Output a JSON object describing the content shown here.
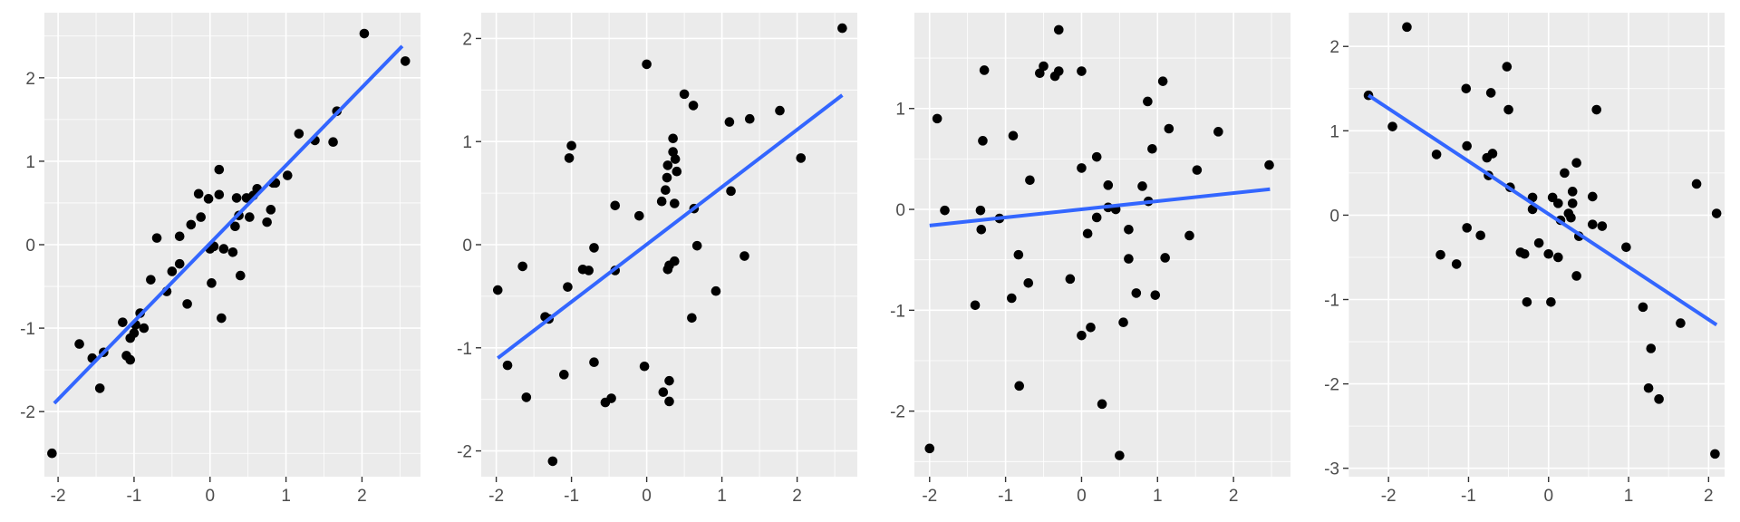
{
  "colors": {
    "panel": "#ebebeb",
    "grid": "#ffffff",
    "point": "#000000",
    "fit_line": "#3366ff",
    "tick_text": "#4d4d4d"
  },
  "chart_data": [
    {
      "type": "scatter",
      "title": "",
      "xlabel": "",
      "ylabel": "",
      "grid": true,
      "xlim": [
        -2.18,
        2.77
      ],
      "ylim": [
        -2.78,
        2.78
      ],
      "x_ticks": [
        -2,
        -1,
        0,
        1,
        2
      ],
      "y_ticks": [
        -2,
        -1,
        0,
        1,
        2
      ],
      "x_tick_labels": [
        "-2",
        "-1",
        "0",
        "1",
        "2"
      ],
      "y_tick_labels": [
        "-2",
        "-1",
        "0",
        "1",
        "2"
      ],
      "fit_line": {
        "x": [
          -2.05,
          2.53
        ],
        "y": [
          -1.9,
          2.38
        ]
      },
      "points": [
        [
          -2.08,
          -2.5
        ],
        [
          -1.72,
          -1.19
        ],
        [
          -1.55,
          -1.36
        ],
        [
          -1.45,
          -1.72
        ],
        [
          -1.4,
          -1.29
        ],
        [
          -1.15,
          -0.93
        ],
        [
          -1.1,
          -1.33
        ],
        [
          -1.05,
          -1.38
        ],
        [
          -1.05,
          -1.12
        ],
        [
          -1.0,
          -1.06
        ],
        [
          -0.98,
          -0.96
        ],
        [
          -0.92,
          -0.82
        ],
        [
          -0.87,
          -1.0
        ],
        [
          -0.78,
          -0.42
        ],
        [
          -0.7,
          0.08
        ],
        [
          -0.57,
          -0.56
        ],
        [
          -0.5,
          -0.32
        ],
        [
          -0.4,
          -0.23
        ],
        [
          -0.4,
          0.1
        ],
        [
          -0.3,
          -0.71
        ],
        [
          -0.25,
          0.24
        ],
        [
          -0.15,
          0.61
        ],
        [
          -0.12,
          0.33
        ],
        [
          -0.02,
          0.55
        ],
        [
          0.0,
          -0.05
        ],
        [
          0.02,
          -0.46
        ],
        [
          0.05,
          -0.02
        ],
        [
          0.12,
          0.9
        ],
        [
          0.12,
          0.6
        ],
        [
          0.15,
          -0.88
        ],
        [
          0.18,
          -0.05
        ],
        [
          0.3,
          -0.09
        ],
        [
          0.33,
          0.22
        ],
        [
          0.35,
          0.56
        ],
        [
          0.38,
          0.35
        ],
        [
          0.4,
          -0.37
        ],
        [
          0.48,
          0.56
        ],
        [
          0.52,
          0.33
        ],
        [
          0.57,
          0.59
        ],
        [
          0.62,
          0.67
        ],
        [
          0.75,
          0.27
        ],
        [
          0.8,
          0.42
        ],
        [
          0.83,
          0.74
        ],
        [
          0.86,
          0.74
        ],
        [
          1.02,
          0.83
        ],
        [
          1.17,
          1.33
        ],
        [
          1.38,
          1.25
        ],
        [
          1.62,
          1.23
        ],
        [
          1.67,
          1.6
        ],
        [
          2.03,
          2.53
        ],
        [
          2.57,
          2.2
        ]
      ]
    },
    {
      "type": "scatter",
      "title": "",
      "xlabel": "",
      "ylabel": "",
      "grid": true,
      "xlim": [
        -2.2,
        2.8
      ],
      "ylim": [
        -2.25,
        2.25
      ],
      "x_ticks": [
        -2,
        -1,
        0,
        1,
        2
      ],
      "y_ticks": [
        -2,
        -1,
        0,
        1,
        2
      ],
      "x_tick_labels": [
        "-2",
        "-1",
        "0",
        "1",
        "2"
      ],
      "y_tick_labels": [
        "-2",
        "-1",
        "0",
        "1",
        "2"
      ],
      "fit_line": {
        "x": [
          -1.98,
          2.6
        ],
        "y": [
          -1.1,
          1.45
        ]
      },
      "points": [
        [
          -1.98,
          -0.44
        ],
        [
          -1.85,
          -1.17
        ],
        [
          -1.65,
          -0.21
        ],
        [
          -1.6,
          -1.48
        ],
        [
          -1.35,
          -0.7
        ],
        [
          -1.3,
          -0.72
        ],
        [
          -1.25,
          -2.1
        ],
        [
          -1.1,
          -1.26
        ],
        [
          -1.05,
          -0.41
        ],
        [
          -1.03,
          0.84
        ],
        [
          -1.0,
          0.96
        ],
        [
          -0.85,
          -0.24
        ],
        [
          -0.77,
          -0.25
        ],
        [
          -0.7,
          -0.03
        ],
        [
          -0.7,
          -1.14
        ],
        [
          -0.55,
          -1.53
        ],
        [
          -0.47,
          -1.49
        ],
        [
          -0.42,
          0.38
        ],
        [
          -0.42,
          -0.25
        ],
        [
          -0.1,
          0.28
        ],
        [
          -0.03,
          -1.18
        ],
        [
          0.0,
          1.75
        ],
        [
          0.2,
          0.42
        ],
        [
          0.22,
          -1.43
        ],
        [
          0.25,
          0.53
        ],
        [
          0.27,
          0.65
        ],
        [
          0.28,
          -0.24
        ],
        [
          0.28,
          0.77
        ],
        [
          0.3,
          -0.2
        ],
        [
          0.3,
          -1.32
        ],
        [
          0.3,
          -1.52
        ],
        [
          0.35,
          1.03
        ],
        [
          0.35,
          0.9
        ],
        [
          0.37,
          -0.16
        ],
        [
          0.37,
          0.4
        ],
        [
          0.38,
          0.83
        ],
        [
          0.4,
          0.71
        ],
        [
          0.5,
          1.46
        ],
        [
          0.6,
          -0.71
        ],
        [
          0.62,
          1.35
        ],
        [
          0.63,
          0.35
        ],
        [
          0.67,
          -0.01
        ],
        [
          0.92,
          -0.45
        ],
        [
          1.1,
          1.19
        ],
        [
          1.12,
          0.52
        ],
        [
          1.3,
          -0.11
        ],
        [
          1.37,
          1.22
        ],
        [
          1.77,
          1.3
        ],
        [
          2.05,
          0.84
        ],
        [
          2.6,
          2.1
        ]
      ]
    },
    {
      "type": "scatter",
      "title": "",
      "xlabel": "",
      "ylabel": "",
      "grid": true,
      "xlim": [
        -2.2,
        2.75
      ],
      "ylim": [
        -2.65,
        1.95
      ],
      "x_ticks": [
        -2,
        -1,
        0,
        1,
        2
      ],
      "y_ticks": [
        -2,
        -1,
        0,
        1
      ],
      "x_tick_labels": [
        "-2",
        "-1",
        "0",
        "1",
        "2"
      ],
      "y_tick_labels": [
        "-2",
        "-1",
        "0",
        "1"
      ],
      "fit_line": {
        "x": [
          -2.0,
          2.48
        ],
        "y": [
          -0.16,
          0.2
        ]
      },
      "points": [
        [
          -2.0,
          -2.37
        ],
        [
          -1.9,
          0.9
        ],
        [
          -1.8,
          -0.01
        ],
        [
          -1.4,
          -0.95
        ],
        [
          -1.33,
          -0.01
        ],
        [
          -1.32,
          -0.2
        ],
        [
          -1.3,
          0.68
        ],
        [
          -1.28,
          1.38
        ],
        [
          -1.08,
          -0.09
        ],
        [
          -0.92,
          -0.88
        ],
        [
          -0.9,
          0.73
        ],
        [
          -0.83,
          -0.45
        ],
        [
          -0.82,
          -1.75
        ],
        [
          -0.7,
          -0.73
        ],
        [
          -0.68,
          0.29
        ],
        [
          -0.55,
          1.35
        ],
        [
          -0.5,
          1.42
        ],
        [
          -0.35,
          1.32
        ],
        [
          -0.3,
          1.78
        ],
        [
          -0.3,
          1.37
        ],
        [
          -0.15,
          -0.69
        ],
        [
          0.0,
          1.37
        ],
        [
          0.0,
          0.41
        ],
        [
          0.0,
          -1.25
        ],
        [
          0.08,
          -0.24
        ],
        [
          0.12,
          -1.17
        ],
        [
          0.2,
          0.52
        ],
        [
          0.2,
          -0.08
        ],
        [
          0.27,
          -1.93
        ],
        [
          0.35,
          0.24
        ],
        [
          0.35,
          0.02
        ],
        [
          0.45,
          0.0
        ],
        [
          0.5,
          -2.44
        ],
        [
          0.55,
          -1.12
        ],
        [
          0.62,
          -0.2
        ],
        [
          0.62,
          -0.49
        ],
        [
          0.72,
          -0.83
        ],
        [
          0.8,
          0.23
        ],
        [
          0.87,
          1.07
        ],
        [
          0.88,
          0.08
        ],
        [
          0.93,
          0.6
        ],
        [
          0.97,
          -0.85
        ],
        [
          1.07,
          1.27
        ],
        [
          1.1,
          -0.48
        ],
        [
          1.15,
          0.8
        ],
        [
          1.42,
          -0.26
        ],
        [
          1.52,
          0.39
        ],
        [
          1.8,
          0.77
        ],
        [
          2.47,
          0.44
        ]
      ]
    },
    {
      "type": "scatter",
      "title": "",
      "xlabel": "",
      "ylabel": "",
      "grid": true,
      "xlim": [
        -2.5,
        2.2
      ],
      "ylim": [
        -3.1,
        2.4
      ],
      "x_ticks": [
        -2,
        -1,
        0,
        1,
        2
      ],
      "y_ticks": [
        -3,
        -2,
        -1,
        0,
        1,
        2
      ],
      "x_tick_labels": [
        "-2",
        "-1",
        "0",
        "1",
        "2"
      ],
      "y_tick_labels": [
        "-3",
        "-2",
        "-1",
        "0",
        "1",
        "2"
      ],
      "fit_line": {
        "x": [
          -2.25,
          2.1
        ],
        "y": [
          1.42,
          -1.3
        ]
      },
      "points": [
        [
          -2.25,
          1.42
        ],
        [
          -1.95,
          1.05
        ],
        [
          -1.77,
          2.23
        ],
        [
          -1.4,
          0.72
        ],
        [
          -1.35,
          -0.47
        ],
        [
          -1.15,
          -0.58
        ],
        [
          -1.03,
          1.5
        ],
        [
          -1.02,
          -0.15
        ],
        [
          -1.02,
          0.82
        ],
        [
          -0.85,
          -0.24
        ],
        [
          -0.77,
          0.68
        ],
        [
          -0.75,
          0.47
        ],
        [
          -0.72,
          1.45
        ],
        [
          -0.7,
          0.73
        ],
        [
          -0.52,
          1.76
        ],
        [
          -0.5,
          1.25
        ],
        [
          -0.48,
          0.33
        ],
        [
          -0.35,
          -0.44
        ],
        [
          -0.3,
          -0.46
        ],
        [
          -0.27,
          -1.03
        ],
        [
          -0.2,
          0.21
        ],
        [
          -0.2,
          0.07
        ],
        [
          -0.12,
          -0.33
        ],
        [
          0.0,
          -0.46
        ],
        [
          0.03,
          -1.03
        ],
        [
          0.05,
          0.21
        ],
        [
          0.12,
          0.14
        ],
        [
          0.12,
          -0.5
        ],
        [
          0.15,
          -0.06
        ],
        [
          0.2,
          0.5
        ],
        [
          0.25,
          0.02
        ],
        [
          0.28,
          -0.03
        ],
        [
          0.3,
          0.28
        ],
        [
          0.3,
          0.14
        ],
        [
          0.35,
          0.62
        ],
        [
          0.35,
          -0.72
        ],
        [
          0.38,
          -0.25
        ],
        [
          0.55,
          0.22
        ],
        [
          0.55,
          -0.11
        ],
        [
          0.6,
          1.25
        ],
        [
          0.67,
          -0.13
        ],
        [
          0.97,
          -0.38
        ],
        [
          1.18,
          -1.09
        ],
        [
          1.25,
          -2.05
        ],
        [
          1.28,
          -1.58
        ],
        [
          1.38,
          -2.18
        ],
        [
          1.65,
          -1.28
        ],
        [
          1.85,
          0.37
        ],
        [
          2.08,
          -2.83
        ],
        [
          2.1,
          0.02
        ]
      ]
    }
  ]
}
